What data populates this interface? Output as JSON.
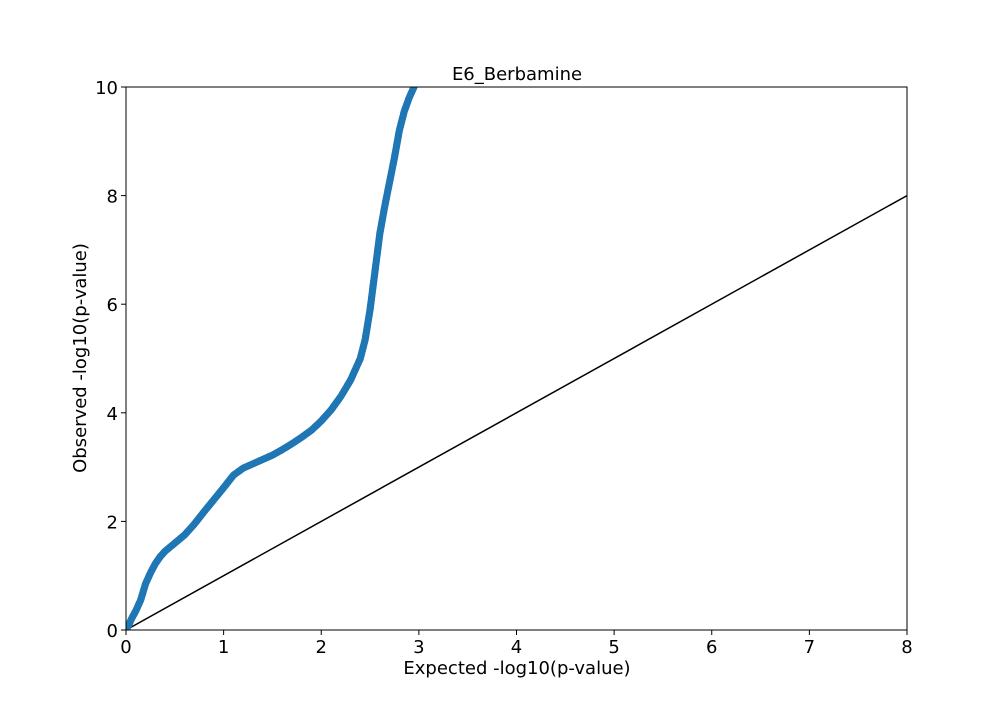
{
  "chart_data": {
    "type": "scatter",
    "title": "E6_Berbamine",
    "xlabel": "Expected -log10(p-value)",
    "ylabel": "Observed -log10(p-value)",
    "xlim": [
      0,
      8
    ],
    "ylim": [
      0,
      10
    ],
    "xticks": [
      "0",
      "1",
      "2",
      "3",
      "4",
      "5",
      "6",
      "7",
      "8"
    ],
    "yticks": [
      "0",
      "2",
      "4",
      "6",
      "8",
      "10"
    ],
    "grid": false,
    "legend": "none",
    "series": [
      {
        "color": "#1f77b4",
        "points": [
          [
            0.0,
            0.0
          ],
          [
            0.03,
            0.1
          ],
          [
            0.06,
            0.22
          ],
          [
            0.1,
            0.35
          ],
          [
            0.15,
            0.55
          ],
          [
            0.2,
            0.85
          ],
          [
            0.25,
            1.05
          ],
          [
            0.3,
            1.22
          ],
          [
            0.35,
            1.35
          ],
          [
            0.4,
            1.45
          ],
          [
            0.5,
            1.6
          ],
          [
            0.6,
            1.75
          ],
          [
            0.7,
            1.95
          ],
          [
            0.8,
            2.18
          ],
          [
            0.9,
            2.4
          ],
          [
            1.0,
            2.62
          ],
          [
            1.1,
            2.85
          ],
          [
            1.2,
            2.98
          ],
          [
            1.3,
            3.06
          ],
          [
            1.4,
            3.14
          ],
          [
            1.5,
            3.22
          ],
          [
            1.6,
            3.32
          ],
          [
            1.7,
            3.43
          ],
          [
            1.8,
            3.55
          ],
          [
            1.9,
            3.68
          ],
          [
            2.0,
            3.85
          ],
          [
            2.1,
            4.05
          ],
          [
            2.2,
            4.3
          ],
          [
            2.3,
            4.6
          ],
          [
            2.4,
            5.0
          ],
          [
            2.45,
            5.35
          ],
          [
            2.5,
            5.9
          ],
          [
            2.55,
            6.6
          ],
          [
            2.6,
            7.3
          ],
          [
            2.65,
            7.8
          ],
          [
            2.7,
            8.25
          ],
          [
            2.75,
            8.7
          ],
          [
            2.8,
            9.2
          ],
          [
            2.85,
            9.55
          ],
          [
            2.9,
            9.8
          ],
          [
            2.95,
            10.0
          ]
        ]
      }
    ],
    "reference_line": {
      "color": "#000000",
      "points": [
        [
          0,
          0
        ],
        [
          8,
          8
        ]
      ]
    }
  }
}
